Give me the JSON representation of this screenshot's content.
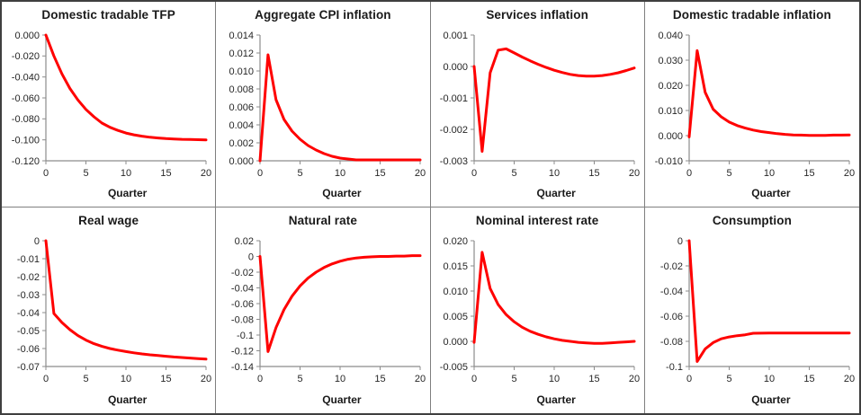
{
  "figure": {
    "rows": 2,
    "cols": 4,
    "xlabel": "Quarter"
  },
  "colors": {
    "series_line": "#FF0000",
    "axis": "#8C8C8C",
    "tick_text": "#262626",
    "title_text": "#1A1A1A",
    "panel_divider": "#7F7F7F",
    "outer_border": "#3F3F3F",
    "background": "#FFFFFF"
  },
  "chart_data": [
    {
      "type": "line",
      "title": "Domestic tradable TFP",
      "xlabel": "Quarter",
      "x": [
        0,
        1,
        2,
        3,
        4,
        5,
        6,
        7,
        8,
        9,
        10,
        11,
        12,
        13,
        14,
        15,
        16,
        17,
        18,
        19,
        20
      ],
      "values": [
        0,
        -0.02,
        -0.037,
        -0.051,
        -0.062,
        -0.071,
        -0.078,
        -0.084,
        -0.088,
        -0.091,
        -0.0935,
        -0.0952,
        -0.0965,
        -0.0975,
        -0.0982,
        -0.0988,
        -0.0992,
        -0.0995,
        -0.0997,
        -0.0999,
        -0.1
      ],
      "ylim": [
        -0.12,
        0.0
      ],
      "yticks": [
        "0.000",
        "-0.020",
        "-0.040",
        "-0.060",
        "-0.080",
        "-0.100",
        "-0.120"
      ],
      "xticks": [
        "0",
        "5",
        "10",
        "15",
        "20"
      ],
      "line_color": "#FF0000",
      "grid": false,
      "legend": null
    },
    {
      "type": "line",
      "title": "Aggregate CPI inflation",
      "xlabel": "Quarter",
      "x": [
        0,
        1,
        2,
        3,
        4,
        5,
        6,
        7,
        8,
        9,
        10,
        11,
        12,
        13,
        14,
        15,
        16,
        17,
        18,
        19,
        20
      ],
      "values": [
        0,
        0.0118,
        0.0068,
        0.0046,
        0.0033,
        0.0024,
        0.0017,
        0.0012,
        0.0008,
        0.0005,
        0.0003,
        0.0002,
        0.0001,
        0.0001,
        0.0001,
        0.0001,
        0.0001,
        0.0001,
        0.0001,
        0.0001,
        0.0001
      ],
      "ylim": [
        0.0,
        0.014
      ],
      "yticks": [
        "0.014",
        "0.012",
        "0.010",
        "0.008",
        "0.006",
        "0.004",
        "0.002",
        "0.000"
      ],
      "xticks": [
        "0",
        "5",
        "10",
        "15",
        "20"
      ],
      "line_color": "#FF0000",
      "grid": false,
      "legend": null
    },
    {
      "type": "line",
      "title": "Services inflation",
      "xlabel": "Quarter",
      "x": [
        0,
        1,
        2,
        3,
        4,
        5,
        6,
        7,
        8,
        9,
        10,
        11,
        12,
        13,
        14,
        15,
        16,
        17,
        18,
        19,
        20
      ],
      "values": [
        0,
        -0.0027,
        -0.0002,
        0.00052,
        0.00056,
        0.00043,
        0.0003,
        0.00018,
        7e-05,
        -3e-05,
        -0.00012,
        -0.00019,
        -0.00025,
        -0.00029,
        -0.00031,
        -0.00031,
        -0.00029,
        -0.00025,
        -0.0002,
        -0.00013,
        -5e-05
      ],
      "ylim": [
        -0.003,
        0.001
      ],
      "yticks": [
        "0.001",
        "0.000",
        "-0.001",
        "-0.002",
        "-0.003"
      ],
      "xticks": [
        "0",
        "5",
        "10",
        "15",
        "20"
      ],
      "line_color": "#FF0000",
      "grid": false,
      "legend": null
    },
    {
      "type": "line",
      "title": "Domestic tradable inflation",
      "xlabel": "Quarter",
      "x": [
        0,
        1,
        2,
        3,
        4,
        5,
        6,
        7,
        8,
        9,
        10,
        11,
        12,
        13,
        14,
        15,
        16,
        17,
        18,
        19,
        20
      ],
      "values": [
        -0.0005,
        0.0338,
        0.0172,
        0.0105,
        0.0075,
        0.0054,
        0.004,
        0.003,
        0.0022,
        0.0016,
        0.0012,
        0.0008,
        0.0005,
        0.0003,
        0.0002,
        0.0001,
        0.0001,
        0.0001,
        0.0002,
        0.0002,
        0.0003
      ],
      "ylim": [
        -0.01,
        0.04
      ],
      "yticks": [
        "0.040",
        "0.030",
        "0.020",
        "0.010",
        "0.000",
        "-0.010"
      ],
      "xticks": [
        "0",
        "5",
        "10",
        "15",
        "20"
      ],
      "line_color": "#FF0000",
      "grid": false,
      "legend": null
    },
    {
      "type": "line",
      "title": "Real wage",
      "xlabel": "Quarter",
      "x": [
        0,
        1,
        2,
        3,
        4,
        5,
        6,
        7,
        8,
        9,
        10,
        11,
        12,
        13,
        14,
        15,
        16,
        17,
        18,
        19,
        20
      ],
      "values": [
        0,
        -0.0405,
        -0.0455,
        -0.0495,
        -0.0528,
        -0.0553,
        -0.0573,
        -0.0588,
        -0.06,
        -0.0609,
        -0.0617,
        -0.0624,
        -0.063,
        -0.0635,
        -0.0639,
        -0.0643,
        -0.0647,
        -0.065,
        -0.0653,
        -0.0656,
        -0.0659
      ],
      "ylim": [
        -0.07,
        0.0
      ],
      "yticks": [
        "0",
        "-0.01",
        "-0.02",
        "-0.03",
        "-0.04",
        "-0.05",
        "-0.06",
        "-0.07"
      ],
      "xticks": [
        "0",
        "5",
        "10",
        "15",
        "20"
      ],
      "line_color": "#FF0000",
      "grid": false,
      "legend": null
    },
    {
      "type": "line",
      "title": "Natural rate",
      "xlabel": "Quarter",
      "x": [
        0,
        1,
        2,
        3,
        4,
        5,
        6,
        7,
        8,
        9,
        10,
        11,
        12,
        13,
        14,
        15,
        16,
        17,
        18,
        19,
        20
      ],
      "values": [
        0,
        -0.121,
        -0.0905,
        -0.0675,
        -0.0505,
        -0.0375,
        -0.0275,
        -0.02,
        -0.014,
        -0.0095,
        -0.006,
        -0.0035,
        -0.002,
        -0.001,
        -0.0005,
        0,
        0,
        0.0005,
        0.0005,
        0.001,
        0.001
      ],
      "ylim": [
        -0.14,
        0.02
      ],
      "yticks": [
        "0.02",
        "0",
        "-0.02",
        "-0.04",
        "-0.06",
        "-0.08",
        "-0.1",
        "-0.12",
        "-0.14"
      ],
      "xticks": [
        "0",
        "5",
        "10",
        "15",
        "20"
      ],
      "line_color": "#FF0000",
      "grid": false,
      "legend": null
    },
    {
      "type": "line",
      "title": "Nominal interest rate",
      "xlabel": "Quarter",
      "x": [
        0,
        1,
        2,
        3,
        4,
        5,
        6,
        7,
        8,
        9,
        10,
        11,
        12,
        13,
        14,
        15,
        16,
        17,
        18,
        19,
        20
      ],
      "values": [
        -0.0002,
        0.0177,
        0.0105,
        0.0073,
        0.0053,
        0.0039,
        0.0028,
        0.002,
        0.0014,
        0.0009,
        0.0005,
        0.0002,
        0,
        -0.0002,
        -0.0003,
        -0.0004,
        -0.0004,
        -0.0003,
        -0.0002,
        -0.0001,
        0
      ],
      "ylim": [
        -0.005,
        0.02
      ],
      "yticks": [
        "0.020",
        "0.015",
        "0.010",
        "0.005",
        "0.000",
        "-0.005"
      ],
      "xticks": [
        "0",
        "5",
        "10",
        "15",
        "20"
      ],
      "line_color": "#FF0000",
      "grid": false,
      "legend": null
    },
    {
      "type": "line",
      "title": "Consumption",
      "xlabel": "Quarter",
      "x": [
        0,
        1,
        2,
        3,
        4,
        5,
        6,
        7,
        8,
        9,
        10,
        11,
        12,
        13,
        14,
        15,
        16,
        17,
        18,
        19,
        20
      ],
      "values": [
        0,
        -0.096,
        -0.086,
        -0.081,
        -0.078,
        -0.0765,
        -0.0755,
        -0.0748,
        -0.0736,
        -0.0735,
        -0.0734,
        -0.0734,
        -0.0734,
        -0.0734,
        -0.0734,
        -0.0734,
        -0.0734,
        -0.0734,
        -0.0734,
        -0.0734,
        -0.0734
      ],
      "ylim": [
        -0.1,
        0.0
      ],
      "yticks": [
        "0",
        "-0.02",
        "-0.04",
        "-0.06",
        "-0.08",
        "-0.1"
      ],
      "xticks": [
        "0",
        "5",
        "10",
        "15",
        "20"
      ],
      "line_color": "#FF0000",
      "grid": false,
      "legend": null
    }
  ]
}
